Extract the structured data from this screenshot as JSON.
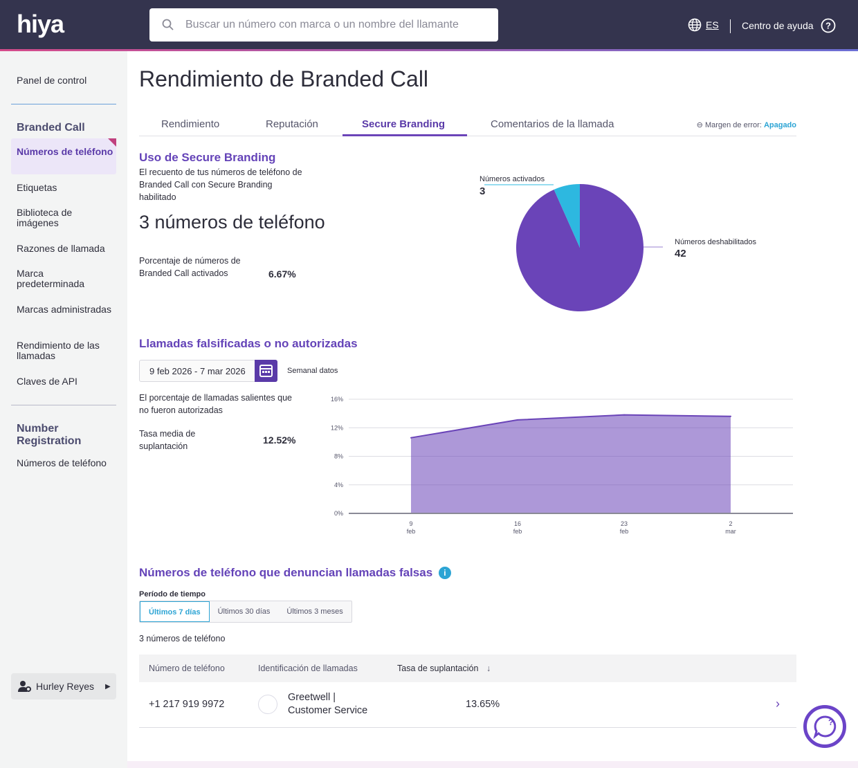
{
  "header": {
    "logo": "hiya",
    "search_placeholder": "Buscar un número con marca o un nombre del llamante",
    "language": "ES",
    "help": "Centro de ayuda"
  },
  "sidebar": {
    "dashboard": "Panel de control",
    "section1": "Branded Call",
    "items": [
      "Números de teléfono",
      "Etiquetas",
      "Biblioteca de imágenes",
      "Razones de llamada",
      "Marca predeterminada",
      "Marcas administradas",
      "Rendimiento de las llamadas",
      "Claves de API"
    ],
    "section2": "Number Registration",
    "items2": [
      "Números de teléfono"
    ],
    "user": "Hurley Reyes"
  },
  "page": {
    "title": "Rendimiento de Branded Call",
    "tabs": [
      "Rendimiento",
      "Reputación",
      "Secure Branding",
      "Comentarios de la llamada"
    ],
    "active_tab": "Secure Branding",
    "error_margin_label": "Margen de error:",
    "error_margin_value": "Apagado"
  },
  "usage": {
    "title": "Uso de Secure Branding",
    "desc": "El recuento de tus números de teléfono de Branded Call con Secure Branding habilitado",
    "count": "3 números de teléfono",
    "pct_label": "Porcentaje de números de Branded Call activados",
    "pct_value": "6.67%"
  },
  "pie": {
    "activated_label": "Números activados",
    "activated": "3",
    "disabled_label": "Números deshabilitados",
    "disabled": "42",
    "colors": {
      "activated": "#2db8e0",
      "disabled": "#6a44b8"
    }
  },
  "spoof": {
    "title": "Llamadas falsificadas o no autorizadas",
    "date_range": "9 feb 2026 - 7 mar 2026",
    "granularity": "Semanal datos",
    "desc": "El porcentaje de llamadas salientes que no fueron autorizadas",
    "avg_label": "Tasa media de suplantación",
    "avg_value": "12.52%"
  },
  "chart_data": {
    "type": "area",
    "x": [
      "9 feb",
      "16 feb",
      "23 feb",
      "2 mar"
    ],
    "x_ticks": [
      [
        "9",
        "feb"
      ],
      [
        "16",
        "feb"
      ],
      [
        "23",
        "feb"
      ],
      [
        "2",
        "mar"
      ]
    ],
    "values": [
      10.6,
      13.1,
      13.8,
      13.6
    ],
    "y_ticks": [
      "0%",
      "4%",
      "8%",
      "12%",
      "16%"
    ],
    "ylim": [
      0,
      16
    ],
    "grid": true,
    "color": "#6a44b8"
  },
  "report": {
    "title": "Números de teléfono que denuncian llamadas falsas",
    "period_label": "Período de tiempo",
    "periods": [
      "Últimos 7 días",
      "Últimos 30 días",
      "Últimos 3 meses"
    ],
    "count": "3 números de teléfono",
    "columns": [
      "Número de teléfono",
      "Identificación de llamadas",
      "Tasa de suplantación"
    ],
    "rows": [
      {
        "phone": "+1 217 919 9972",
        "caller_line1": "Greetwell |",
        "caller_line2": "Customer Service",
        "rate": "13.65%"
      }
    ]
  }
}
